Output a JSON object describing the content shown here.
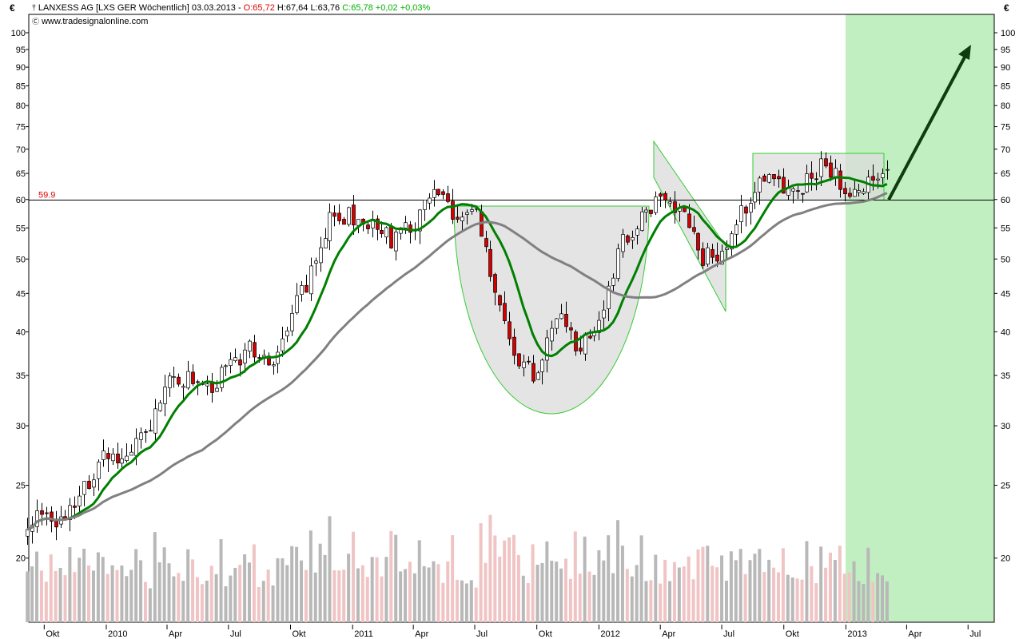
{
  "header": {
    "symbol_icon": "candlestick-icon",
    "title": "LANXESS AG [LXS GER  Wöchentlich] 03.03.2013 - ",
    "open": "O:65,72",
    "high_low": " H:67,64 L:63,76 ",
    "close_change": "C:65,78 +0,02 +0,03%",
    "source_icon": "copyright-icon",
    "source": "www.tradesignalonline.com"
  },
  "currency_left": "€",
  "currency_right": "€",
  "colors": {
    "up": "#ffffff",
    "down": "#d40000",
    "ma_fast": "#008000",
    "ma_slow": "#808080",
    "target_zone": "#c2efc2",
    "pattern_fill": "#e4e4e4",
    "pattern_stroke": "#33cc33",
    "arrow": "#0f3d0f",
    "volume_up": "#b8b8b8",
    "volume_down": "#f0c4c4",
    "level_label": "#e00000"
  },
  "chart_data": {
    "type": "candlestick",
    "scale": "log",
    "ylim": [
      17,
      110
    ],
    "y_ticks": [
      100,
      95,
      90,
      85,
      80,
      75,
      70,
      65,
      60,
      55,
      50,
      45,
      40,
      35,
      30,
      25,
      20
    ],
    "x_ticks": [
      {
        "label": "Okt",
        "date": "2009-10-01"
      },
      {
        "label": "2010",
        "date": "2010-01-01"
      },
      {
        "label": "Apr",
        "date": "2010-04-01"
      },
      {
        "label": "Jul",
        "date": "2010-07-01"
      },
      {
        "label": "Okt",
        "date": "2010-10-01"
      },
      {
        "label": "2011",
        "date": "2011-01-01"
      },
      {
        "label": "Apr",
        "date": "2011-04-01"
      },
      {
        "label": "Jul",
        "date": "2011-07-01"
      },
      {
        "label": "Okt",
        "date": "2011-10-01"
      },
      {
        "label": "2012",
        "date": "2012-01-01"
      },
      {
        "label": "Apr",
        "date": "2012-04-01"
      },
      {
        "label": "Jul",
        "date": "2012-07-01"
      },
      {
        "label": "Okt",
        "date": "2012-10-01"
      },
      {
        "label": "2013",
        "date": "2013-01-01"
      },
      {
        "label": "Apr",
        "date": "2013-04-01"
      },
      {
        "label": "Jul",
        "date": "2013-07-01"
      }
    ],
    "close_anchors": [
      [
        "2009-09-06",
        22.5
      ],
      [
        "2009-10-01",
        23
      ],
      [
        "2009-11-01",
        22.3
      ],
      [
        "2009-12-01",
        25
      ],
      [
        "2010-01-01",
        28
      ],
      [
        "2010-02-01",
        27
      ],
      [
        "2010-03-01",
        29.5
      ],
      [
        "2010-04-01",
        34
      ],
      [
        "2010-05-01",
        35
      ],
      [
        "2010-06-01",
        33
      ],
      [
        "2010-07-01",
        36
      ],
      [
        "2010-08-01",
        38
      ],
      [
        "2010-09-01",
        36
      ],
      [
        "2010-10-01",
        42
      ],
      [
        "2010-11-01",
        48
      ],
      [
        "2010-12-01",
        57
      ],
      [
        "2011-01-01",
        57
      ],
      [
        "2011-02-01",
        55
      ],
      [
        "2011-03-01",
        53
      ],
      [
        "2011-04-01",
        56
      ],
      [
        "2011-05-01",
        61
      ],
      [
        "2011-06-01",
        57
      ],
      [
        "2011-07-01",
        58
      ],
      [
        "2011-08-01",
        45
      ],
      [
        "2011-09-01",
        37
      ],
      [
        "2011-10-01",
        35
      ],
      [
        "2011-11-01",
        42
      ],
      [
        "2011-12-01",
        38
      ],
      [
        "2012-01-01",
        42
      ],
      [
        "2012-02-01",
        52
      ],
      [
        "2012-03-01",
        56
      ],
      [
        "2012-04-01",
        61
      ],
      [
        "2012-05-01",
        58
      ],
      [
        "2012-06-01",
        50
      ],
      [
        "2012-07-01",
        51
      ],
      [
        "2012-08-01",
        58
      ],
      [
        "2012-09-01",
        65
      ],
      [
        "2012-10-01",
        62
      ],
      [
        "2012-11-01",
        63
      ],
      [
        "2012-12-01",
        67
      ],
      [
        "2013-01-01",
        62
      ],
      [
        "2013-02-01",
        63
      ],
      [
        "2013-03-03",
        65.78
      ]
    ],
    "last_bar": {
      "date": "03.03.2013",
      "open": 65.72,
      "high": 67.64,
      "low": 63.76,
      "close": 65.78
    },
    "moving_averages": [
      "fast",
      "slow"
    ],
    "horizontal_level": {
      "value": 59.9,
      "label": "59.9"
    },
    "annotations": [
      "cup",
      "falling-wedge",
      "rectangle",
      "target-zone",
      "up-arrow"
    ]
  }
}
